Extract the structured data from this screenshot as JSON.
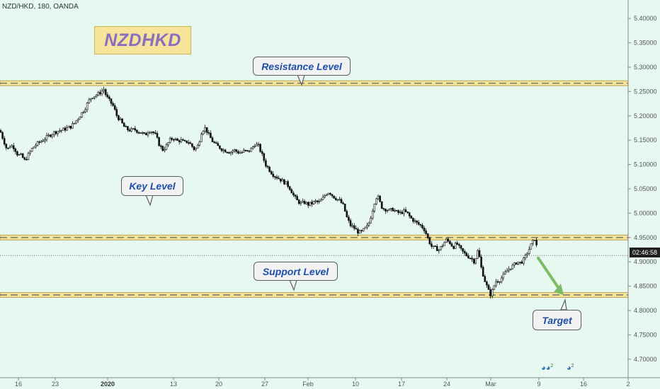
{
  "header": {
    "symbol": "NZD/HKD, 180, OANDA"
  },
  "badge": {
    "text": "NZDHKD"
  },
  "annotations": {
    "resistance": "Resistance Level",
    "key": "Key Level",
    "support": "Support Level",
    "target": "Target"
  },
  "price_readout": "02:46:58",
  "colors": {
    "background": "#e6f8f0",
    "zone_fill": "#f5e49a",
    "zone_line": "#5a5a5a",
    "candle_up": "#ffffff",
    "candle_down": "#111111",
    "arrow": "#7dbb64",
    "callout_text": "#1e4fa7",
    "badge_text": "#8a6ec0"
  },
  "icons": [
    "event-flag-icon",
    "event-flag-icon"
  ],
  "event_counts": [
    "2",
    "2"
  ],
  "chart_data": {
    "type": "candlestick",
    "title": "",
    "ylim": [
      4.662,
      5.438
    ],
    "yticks": [
      "5.40000",
      "5.35000",
      "5.30000",
      "5.25000",
      "5.20000",
      "5.15000",
      "5.10000",
      "5.05000",
      "5.00000",
      "4.95000",
      "4.90000",
      "4.85000",
      "4.80000",
      "4.75000",
      "4.70000"
    ],
    "xticks": [
      {
        "label": "16",
        "bold": false
      },
      {
        "label": "23",
        "bold": false
      },
      {
        "label": "2020",
        "bold": true
      },
      {
        "label": "13",
        "bold": false
      },
      {
        "label": "20",
        "bold": false
      },
      {
        "label": "27",
        "bold": false
      },
      {
        "label": "Feb",
        "bold": false
      },
      {
        "label": "10",
        "bold": false
      },
      {
        "label": "17",
        "bold": false
      },
      {
        "label": "24",
        "bold": false
      },
      {
        "label": "Mar",
        "bold": false
      },
      {
        "label": "9",
        "bold": false
      },
      {
        "label": "16",
        "bold": false
      },
      {
        "label": "2",
        "bold": false
      }
    ],
    "levels": {
      "resistance": [
        5.262,
        5.272
      ],
      "key": [
        4.945,
        4.955
      ],
      "support": [
        4.827,
        4.837
      ]
    },
    "current_price": 4.913,
    "target_arrow": {
      "from": 4.908,
      "to": 4.832
    },
    "price_path": [
      [
        0,
        5.17
      ],
      [
        5,
        5.15
      ],
      [
        10,
        5.13
      ],
      [
        15,
        5.14
      ],
      [
        20,
        5.135
      ],
      [
        25,
        5.12
      ],
      [
        30,
        5.118
      ],
      [
        35,
        5.108
      ],
      [
        40,
        5.12
      ],
      [
        45,
        5.132
      ],
      [
        50,
        5.14
      ],
      [
        55,
        5.145
      ],
      [
        60,
        5.15
      ],
      [
        65,
        5.155
      ],
      [
        70,
        5.16
      ],
      [
        75,
        5.165
      ],
      [
        80,
        5.168
      ],
      [
        85,
        5.17
      ],
      [
        90,
        5.172
      ],
      [
        95,
        5.175
      ],
      [
        100,
        5.178
      ],
      [
        105,
        5.185
      ],
      [
        110,
        5.195
      ],
      [
        115,
        5.205
      ],
      [
        120,
        5.215
      ],
      [
        125,
        5.23
      ],
      [
        130,
        5.24
      ],
      [
        135,
        5.242
      ],
      [
        140,
        5.246
      ],
      [
        143,
        5.25
      ],
      [
        147,
        5.255
      ],
      [
        150,
        5.24
      ],
      [
        155,
        5.23
      ],
      [
        160,
        5.22
      ],
      [
        165,
        5.2
      ],
      [
        170,
        5.19
      ],
      [
        175,
        5.178
      ],
      [
        180,
        5.172
      ],
      [
        185,
        5.17
      ],
      [
        190,
        5.172
      ],
      [
        195,
        5.168
      ],
      [
        200,
        5.165
      ],
      [
        205,
        5.16
      ],
      [
        210,
        5.17
      ],
      [
        215,
        5.168
      ],
      [
        220,
        5.16
      ],
      [
        225,
        5.14
      ],
      [
        230,
        5.13
      ],
      [
        235,
        5.138
      ],
      [
        240,
        5.15
      ],
      [
        245,
        5.155
      ],
      [
        250,
        5.148
      ],
      [
        255,
        5.15
      ],
      [
        260,
        5.145
      ],
      [
        265,
        5.148
      ],
      [
        270,
        5.14
      ],
      [
        275,
        5.13
      ],
      [
        280,
        5.14
      ],
      [
        285,
        5.17
      ],
      [
        290,
        5.175
      ],
      [
        295,
        5.16
      ],
      [
        300,
        5.148
      ],
      [
        305,
        5.14
      ],
      [
        310,
        5.135
      ],
      [
        315,
        5.13
      ],
      [
        320,
        5.128
      ],
      [
        325,
        5.125
      ],
      [
        330,
        5.13
      ],
      [
        335,
        5.126
      ],
      [
        340,
        5.124
      ],
      [
        345,
        5.128
      ],
      [
        350,
        5.126
      ],
      [
        355,
        5.132
      ],
      [
        360,
        5.142
      ],
      [
        365,
        5.138
      ],
      [
        370,
        5.12
      ],
      [
        375,
        5.1
      ],
      [
        380,
        5.09
      ],
      [
        385,
        5.08
      ],
      [
        390,
        5.075
      ],
      [
        395,
        5.07
      ],
      [
        400,
        5.065
      ],
      [
        405,
        5.06
      ],
      [
        410,
        5.05
      ],
      [
        415,
        5.035
      ],
      [
        420,
        5.025
      ],
      [
        425,
        5.02
      ],
      [
        430,
        5.022
      ],
      [
        435,
        5.018
      ],
      [
        440,
        5.02
      ],
      [
        445,
        5.024
      ],
      [
        450,
        5.022
      ],
      [
        455,
        5.028
      ],
      [
        460,
        5.04
      ],
      [
        465,
        5.044
      ],
      [
        470,
        5.035
      ],
      [
        475,
        5.03
      ],
      [
        480,
        5.025
      ],
      [
        485,
        5.015
      ],
      [
        490,
        4.99
      ],
      [
        495,
        4.975
      ],
      [
        500,
        4.97
      ],
      [
        505,
        4.962
      ],
      [
        510,
        4.96
      ],
      [
        515,
        4.968
      ],
      [
        520,
        4.975
      ],
      [
        525,
        5.0
      ],
      [
        530,
        5.03
      ],
      [
        533,
        5.036
      ],
      [
        537,
        5.02
      ],
      [
        540,
        5.01
      ],
      [
        545,
        5.008
      ],
      [
        550,
        5.005
      ],
      [
        555,
        5.008
      ],
      [
        560,
        5.002
      ],
      [
        565,
        5.0
      ],
      [
        570,
        5.004
      ],
      [
        575,
        5.0
      ],
      [
        580,
        4.99
      ],
      [
        585,
        4.984
      ],
      [
        590,
        4.978
      ],
      [
        595,
        4.974
      ],
      [
        600,
        4.965
      ],
      [
        605,
        4.945
      ],
      [
        610,
        4.93
      ],
      [
        615,
        4.928
      ],
      [
        620,
        4.925
      ],
      [
        625,
        4.935
      ],
      [
        630,
        4.945
      ],
      [
        635,
        4.94
      ],
      [
        640,
        4.93
      ],
      [
        645,
        4.938
      ],
      [
        650,
        4.926
      ],
      [
        655,
        4.918
      ],
      [
        660,
        4.912
      ],
      [
        665,
        4.908
      ],
      [
        670,
        4.9
      ],
      [
        675,
        4.925
      ],
      [
        680,
        4.885
      ],
      [
        685,
        4.86
      ],
      [
        690,
        4.84
      ],
      [
        693,
        4.832
      ],
      [
        697,
        4.848
      ],
      [
        700,
        4.86
      ],
      [
        705,
        4.862
      ],
      [
        710,
        4.87
      ],
      [
        715,
        4.88
      ],
      [
        720,
        4.888
      ],
      [
        725,
        4.892
      ],
      [
        730,
        4.9
      ],
      [
        735,
        4.898
      ],
      [
        740,
        4.905
      ],
      [
        745,
        4.92
      ],
      [
        750,
        4.935
      ],
      [
        755,
        4.948
      ],
      [
        758,
        4.93
      ],
      [
        760,
        4.922
      ]
    ]
  }
}
